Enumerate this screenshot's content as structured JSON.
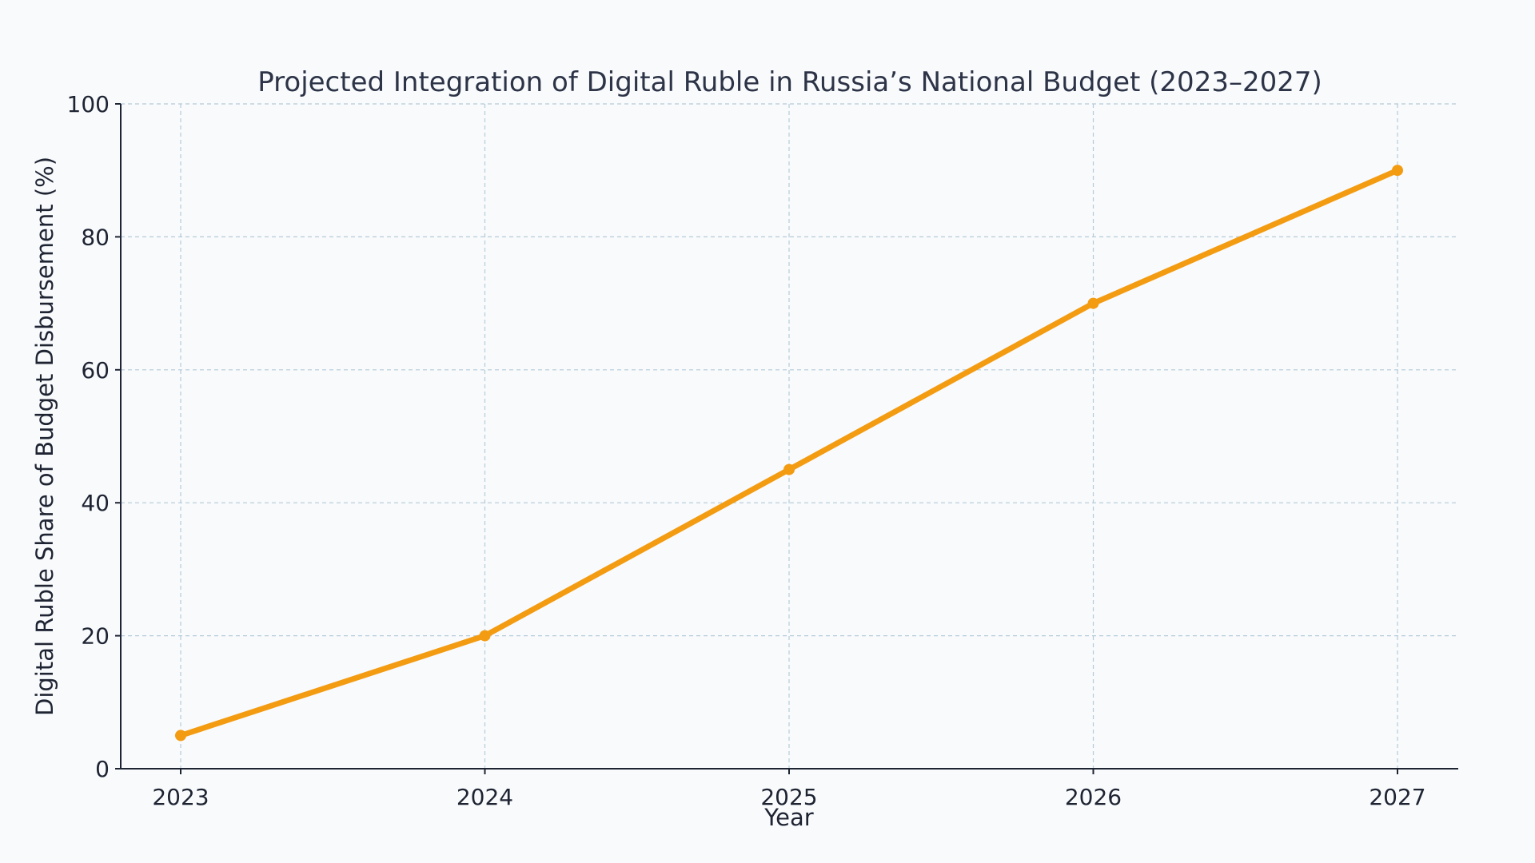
{
  "chart_data": {
    "type": "line",
    "title": "Projected Integration of Digital Ruble in Russia’s National Budget (2023–2027)",
    "xlabel": "Year",
    "ylabel": "Digital Ruble Share of Budget Disbursement (%)",
    "categories": [
      "2023",
      "2024",
      "2025",
      "2026",
      "2027"
    ],
    "series": [
      {
        "values": [
          5,
          20,
          45,
          70,
          90
        ],
        "color": "#f39c12"
      }
    ],
    "ylim": [
      0,
      100
    ],
    "yticks": [
      0,
      20,
      40,
      60,
      80,
      100
    ],
    "ytick_labels": [
      "0",
      "20",
      "40",
      "60",
      "80",
      "100"
    ],
    "grid": true,
    "grid_color": "#b5cbd9",
    "background": "#f8fafc",
    "marker": "circle"
  }
}
